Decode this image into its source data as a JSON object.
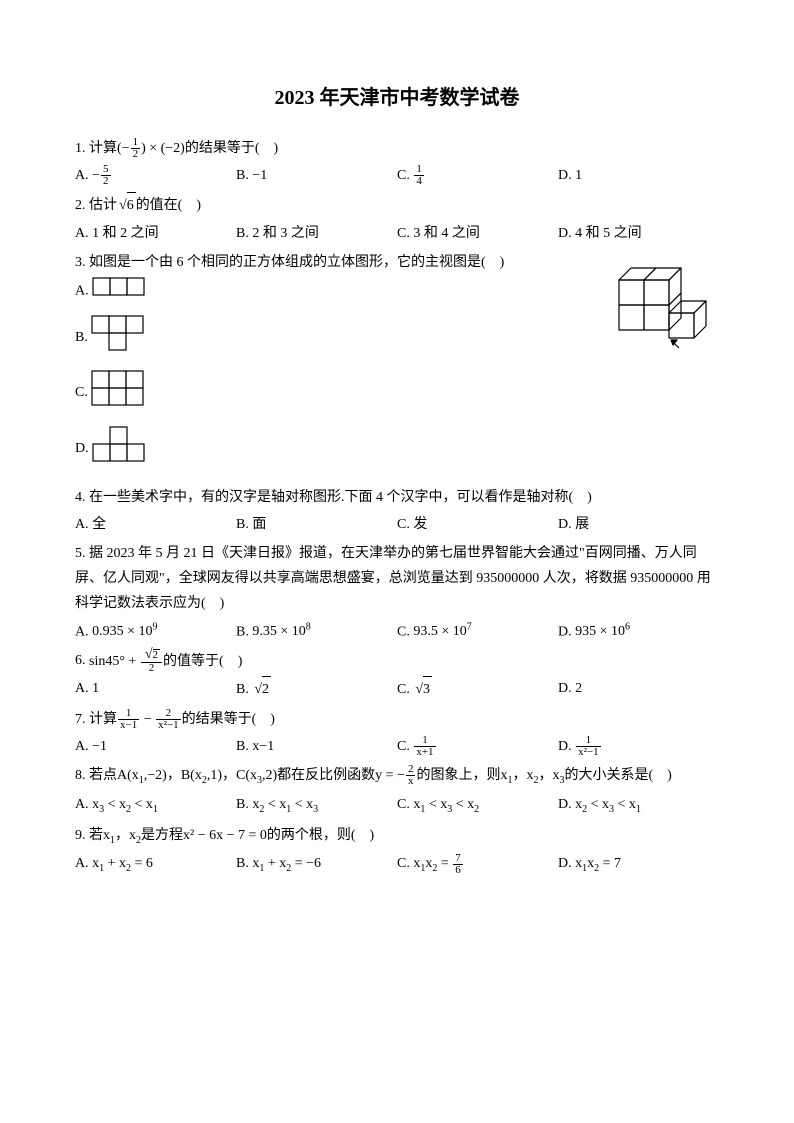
{
  "title": "2023 年天津市中考数学试卷",
  "questions": [
    {
      "num": "1.",
      "stem_parts": [
        "计算(−",
        {
          "frac": [
            "1",
            "2"
          ]
        },
        ") × (−2)的结果等于(　)"
      ],
      "choices_layout": "4",
      "choices": [
        {
          "label": "A.",
          "parts": [
            "−",
            {
              "frac": [
                "5",
                "2"
              ]
            }
          ]
        },
        {
          "label": "B.",
          "parts": [
            "−1"
          ]
        },
        {
          "label": "C.",
          "parts": [
            {
              "frac": [
                "1",
                "4"
              ]
            }
          ]
        },
        {
          "label": "D.",
          "parts": [
            "1"
          ]
        }
      ]
    },
    {
      "num": "2.",
      "stem_parts": [
        "估计",
        {
          "sqrt": "6"
        },
        "的值在(　)"
      ],
      "choices_layout": "4",
      "choices": [
        {
          "label": "A.",
          "parts": [
            "1 和 2 之间"
          ]
        },
        {
          "label": "B.",
          "parts": [
            "2 和 3 之间"
          ]
        },
        {
          "label": "C.",
          "parts": [
            "3 和 4 之间"
          ]
        },
        {
          "label": "D.",
          "parts": [
            "4 和 5 之间"
          ]
        }
      ]
    },
    {
      "num": "3.",
      "stem_parts": [
        "如图是一个由 6 个相同的正方体组成的立体图形，它的主视图是(　)"
      ],
      "has_figure": true,
      "choices_layout": "1",
      "choices": [
        {
          "label": "A.",
          "shape": "A"
        },
        {
          "label": "B.",
          "shape": "B"
        },
        {
          "label": "C.",
          "shape": "C"
        },
        {
          "label": "D.",
          "shape": "D"
        }
      ]
    },
    {
      "num": "4.",
      "stem_parts": [
        "在一些美术字中，有的汉字是轴对称图形.下面 4 个汉字中，可以看作是轴对称(　)"
      ],
      "choices_layout": "4",
      "choices": [
        {
          "label": "A.",
          "parts": [
            "全"
          ]
        },
        {
          "label": "B.",
          "parts": [
            "面"
          ]
        },
        {
          "label": "C.",
          "parts": [
            "发"
          ]
        },
        {
          "label": "D.",
          "parts": [
            "展"
          ]
        }
      ]
    },
    {
      "num": "5.",
      "stem_parts": [
        "据 2023 年 5 月 21 日《天津日报》报道，在天津举办的第七届世界智能大会通过\"百网同播、万人同屏、亿人同观\"，全球网友得以共享高端思想盛宴，总浏览量达到 935000000 人次，将数据 935000000 用科学记数法表示应为(　)"
      ],
      "choices_layout": "4",
      "choices": [
        {
          "label": "A.",
          "parts": [
            "0.935 × 10",
            {
              "sup": "9"
            }
          ]
        },
        {
          "label": "B.",
          "parts": [
            "9.35 × 10",
            {
              "sup": "8"
            }
          ]
        },
        {
          "label": "C.",
          "parts": [
            "93.5 × 10",
            {
              "sup": "7"
            }
          ]
        },
        {
          "label": "D.",
          "parts": [
            "935 × 10",
            {
              "sup": "6"
            }
          ]
        }
      ]
    },
    {
      "num": "6.",
      "stem_parts": [
        "sin45° + ",
        {
          "frac": [
            {
              "sqrt": "2"
            },
            "2"
          ]
        },
        "的值等于(　)"
      ],
      "choices_layout": "4",
      "choices": [
        {
          "label": "A.",
          "parts": [
            "1"
          ]
        },
        {
          "label": "B.",
          "parts": [
            {
              "sqrt": "2"
            }
          ]
        },
        {
          "label": "C.",
          "parts": [
            {
              "sqrt": "3"
            }
          ]
        },
        {
          "label": "D.",
          "parts": [
            "2"
          ]
        }
      ]
    },
    {
      "num": "7.",
      "stem_parts": [
        "计算",
        {
          "frac": [
            "1",
            "x−1"
          ]
        },
        " − ",
        {
          "frac": [
            "2",
            "x²−1"
          ]
        },
        "的结果等于(　)"
      ],
      "choices_layout": "4",
      "choices": [
        {
          "label": "A.",
          "parts": [
            "−1"
          ]
        },
        {
          "label": "B.",
          "parts": [
            "x−1"
          ]
        },
        {
          "label": "C.",
          "parts": [
            {
              "frac": [
                "1",
                "x+1"
              ]
            }
          ]
        },
        {
          "label": "D.",
          "parts": [
            {
              "frac": [
                "1",
                "x²−1"
              ]
            }
          ]
        }
      ]
    },
    {
      "num": "8.",
      "stem_parts": [
        "若点A(x",
        {
          "sub": "1"
        },
        ",−2)，B(x",
        {
          "sub": "2"
        },
        ",1)，C(x",
        {
          "sub": "3"
        },
        ",2)都在反比例函数y = −",
        {
          "frac": [
            "2",
            "x"
          ]
        },
        "的图象上，则x",
        {
          "sub": "1"
        },
        "，x",
        {
          "sub": "2"
        },
        "，x",
        {
          "sub": "3"
        },
        "的大小关系是(　)"
      ],
      "choices_layout": "4",
      "choices": [
        {
          "label": "A.",
          "parts": [
            "x",
            {
              "sub": "3"
            },
            " < x",
            {
              "sub": "2"
            },
            " < x",
            {
              "sub": "1"
            }
          ]
        },
        {
          "label": "B.",
          "parts": [
            "x",
            {
              "sub": "2"
            },
            " < x",
            {
              "sub": "1"
            },
            " < x",
            {
              "sub": "3"
            }
          ]
        },
        {
          "label": "C.",
          "parts": [
            "x",
            {
              "sub": "1"
            },
            " < x",
            {
              "sub": "3"
            },
            " < x",
            {
              "sub": "2"
            }
          ]
        },
        {
          "label": "D.",
          "parts": [
            "x",
            {
              "sub": "2"
            },
            " < x",
            {
              "sub": "3"
            },
            " < x",
            {
              "sub": "1"
            }
          ]
        }
      ]
    },
    {
      "num": "9.",
      "stem_parts": [
        "若x",
        {
          "sub": "1"
        },
        "，x",
        {
          "sub": "2"
        },
        "是方程x² − 6x − 7 = 0的两个根，则(　)"
      ],
      "choices_layout": "4",
      "choices": [
        {
          "label": "A.",
          "parts": [
            "x",
            {
              "sub": "1"
            },
            " + x",
            {
              "sub": "2"
            },
            " = 6"
          ]
        },
        {
          "label": "B.",
          "parts": [
            "x",
            {
              "sub": "1"
            },
            " + x",
            {
              "sub": "2"
            },
            " = −6"
          ]
        },
        {
          "label": "C.",
          "parts": [
            "x",
            {
              "sub": "1"
            },
            "x",
            {
              "sub": "2"
            },
            " = ",
            {
              "frac": [
                "7",
                "6"
              ]
            }
          ]
        },
        {
          "label": "D.",
          "parts": [
            "x",
            {
              "sub": "1"
            },
            "x",
            {
              "sub": "2"
            },
            " = 7"
          ]
        }
      ]
    }
  ],
  "shapes": {
    "cube_3d": {
      "width": 110,
      "height": 100
    },
    "unit": 17,
    "stroke": "#000",
    "stroke_width": 1.2
  }
}
